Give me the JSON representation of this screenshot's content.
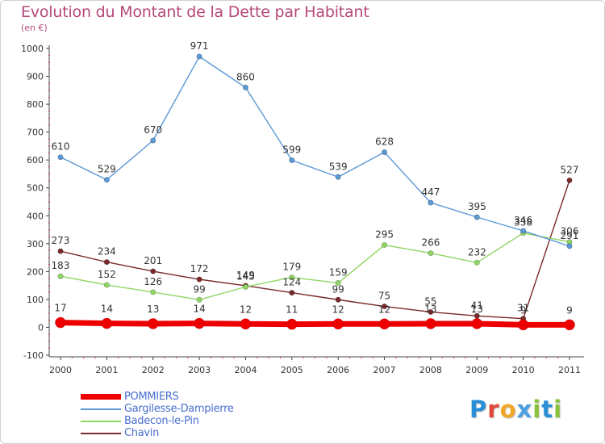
{
  "header": {
    "title": "Evolution du Montant de la Dette par Habitant",
    "subtitle": "(en €)"
  },
  "brand": {
    "letters": [
      "P",
      "r",
      "o",
      "x",
      "i",
      "t",
      "i"
    ],
    "colors": [
      "#2a8fd6",
      "#e0473a",
      "#f2a62a",
      "#4aa0e0",
      "#8ac23c",
      "#2a8fd6",
      "#8ac23c"
    ]
  },
  "chart_data": {
    "type": "line",
    "title": "Evolution du Montant de la Dette par Habitant",
    "subtitle": "(en €)",
    "x": [
      "2000",
      "2001",
      "2002",
      "2003",
      "2004",
      "2005",
      "2006",
      "2007",
      "2008",
      "2009",
      "2010",
      "2011"
    ],
    "ylim": [
      -100,
      1000
    ],
    "yticks": [
      -100,
      0,
      100,
      200,
      300,
      400,
      500,
      600,
      700,
      800,
      900,
      1000
    ],
    "grid": false,
    "legend_position": "bottom-left",
    "series": [
      {
        "name": "POMMIERS",
        "color": "#ee0000",
        "values": [
          17,
          14,
          13,
          14,
          12,
          11,
          12,
          12,
          13,
          13,
          9,
          9
        ],
        "labels": [
          "17",
          "14",
          "13",
          "14",
          "12",
          "11",
          "12",
          "12",
          "13",
          "13",
          "9",
          "9"
        ]
      },
      {
        "name": "Gargilesse-Dampierre",
        "color": "#5b98d6",
        "values": [
          610,
          529,
          670,
          971,
          860,
          599,
          539,
          628,
          447,
          395,
          346,
          291
        ],
        "labels": [
          "610",
          "529",
          "670",
          "971",
          "860",
          "599",
          "539",
          "628",
          "447",
          "395",
          "346",
          "291"
        ]
      },
      {
        "name": "Badecon-le-Pin",
        "color": "#8fd664",
        "values": [
          183,
          152,
          126,
          99,
          145,
          179,
          159,
          295,
          266,
          232,
          338,
          306
        ],
        "labels": [
          "183",
          "152",
          "126",
          "99",
          "145",
          "179",
          "159",
          "295",
          "266",
          "232",
          "338",
          "306"
        ]
      },
      {
        "name": "Chavin",
        "color": "#7a2a2a",
        "values": [
          273,
          234,
          201,
          172,
          149,
          124,
          99,
          75,
          55,
          41,
          31,
          527
        ],
        "labels": [
          "273",
          "234",
          "201",
          "172",
          "149",
          "124",
          "99",
          "75",
          "55",
          "41",
          "31",
          "527"
        ]
      }
    ]
  }
}
